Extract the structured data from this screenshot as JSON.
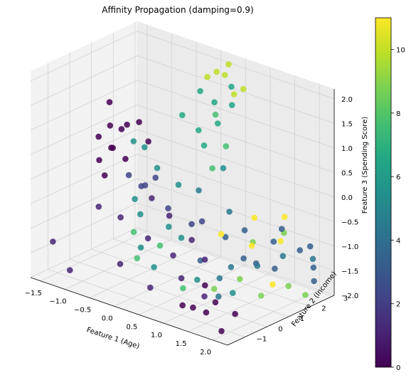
{
  "chart_data": {
    "type": "scatter",
    "projection": "3d",
    "title": "Affinity Propagation (damping=0.9)",
    "xlabel": "Feature 1 (Age)",
    "ylabel": "Feature 2 (Income)",
    "zlabel": "Feature 3 (Spending Score)",
    "xlim": [
      -1.7,
      2.3
    ],
    "ylim": [
      -1.8,
      3.1
    ],
    "zlim": [
      -2.0,
      2.2
    ],
    "xticks": [
      "−1.5",
      "−1.0",
      "−0.5",
      "0.0",
      "0.5",
      "1.0",
      "1.5",
      "2.0"
    ],
    "yticks": [
      "−1",
      "0",
      "1",
      "2",
      "3"
    ],
    "zticks": [
      "−2.0",
      "−1.5",
      "−1.0",
      "−0.5",
      "0.0",
      "0.5",
      "1.0",
      "1.5",
      "2.0"
    ],
    "colorbar": {
      "min": 0,
      "max": 11,
      "ticks": [
        "0",
        "2",
        "4",
        "6",
        "8",
        "10"
      ],
      "colormap": "viridis"
    },
    "grid": true,
    "points": [
      {
        "x": -1.6,
        "y": 1.6,
        "z": 0.9,
        "c": 0
      },
      {
        "x": -1.5,
        "y": 1.4,
        "z": 0.5,
        "c": 0
      },
      {
        "x": -1.6,
        "y": 1.1,
        "z": 0.3,
        "c": 0
      },
      {
        "x": -1.4,
        "y": 1.3,
        "z": 0.1,
        "c": 0
      },
      {
        "x": -1.3,
        "y": 1.0,
        "z": 0.2,
        "c": 0
      },
      {
        "x": -1.5,
        "y": 0.9,
        "z": -0.1,
        "c": 0
      },
      {
        "x": -1.2,
        "y": 1.5,
        "z": 0.6,
        "c": 0
      },
      {
        "x": -1.1,
        "y": 1.2,
        "z": 0.0,
        "c": 0
      },
      {
        "x": -1.4,
        "y": 1.7,
        "z": 0.4,
        "c": 0
      },
      {
        "x": -1.0,
        "y": 1.6,
        "z": 0.7,
        "c": 0
      },
      {
        "x": -0.9,
        "y": 1.8,
        "z": 0.3,
        "c": 0
      },
      {
        "x": -1.3,
        "y": 0.7,
        "z": -0.3,
        "c": 0
      },
      {
        "x": 0.9,
        "y": -0.7,
        "z": -1.9,
        "c": 0
      },
      {
        "x": 1.2,
        "y": -0.9,
        "z": -1.8,
        "c": 0
      },
      {
        "x": 1.6,
        "y": -1.2,
        "z": -1.7,
        "c": 0
      },
      {
        "x": 1.7,
        "y": -1.0,
        "z": -1.5,
        "c": 0
      },
      {
        "x": 2.0,
        "y": -1.4,
        "z": -1.9,
        "c": 0
      },
      {
        "x": 2.1,
        "y": -1.0,
        "z": -1.6,
        "c": 0
      },
      {
        "x": 1.4,
        "y": -0.8,
        "z": -1.3,
        "c": 0
      },
      {
        "x": -1.6,
        "y": -1.0,
        "z": -1.4,
        "c": 1
      },
      {
        "x": -1.3,
        "y": -0.9,
        "z": -1.9,
        "c": 1
      },
      {
        "x": -1.2,
        "y": 0.2,
        "z": -0.8,
        "c": 1
      },
      {
        "x": -0.8,
        "y": 0.3,
        "z": -0.9,
        "c": 1
      },
      {
        "x": -0.5,
        "y": -0.4,
        "z": -1.6,
        "c": 1
      },
      {
        "x": -0.2,
        "y": 0.2,
        "z": -1.1,
        "c": 1
      },
      {
        "x": 0.2,
        "y": -0.6,
        "z": -1.8,
        "c": 1
      },
      {
        "x": 0.4,
        "y": 0.0,
        "z": -1.2,
        "c": 1
      },
      {
        "x": 0.7,
        "y": -0.3,
        "z": -1.5,
        "c": 1
      },
      {
        "x": 1.0,
        "y": 0.1,
        "z": -1.1,
        "c": 1
      },
      {
        "x": 1.3,
        "y": -0.6,
        "z": -1.6,
        "c": 1
      },
      {
        "x": 0.1,
        "y": 0.5,
        "z": -0.6,
        "c": 1
      },
      {
        "x": -0.3,
        "y": 0.6,
        "z": -0.4,
        "c": 1
      },
      {
        "x": 0.6,
        "y": 0.4,
        "z": -0.9,
        "c": 1
      },
      {
        "x": -0.9,
        "y": 0.9,
        "z": -0.2,
        "c": 2
      },
      {
        "x": -0.6,
        "y": 0.8,
        "z": -0.3,
        "c": 2
      },
      {
        "x": -0.4,
        "y": 1.0,
        "z": -0.1,
        "c": 2
      },
      {
        "x": -0.1,
        "y": 0.9,
        "z": -0.6,
        "c": 2
      },
      {
        "x": -0.7,
        "y": 1.2,
        "z": -0.4,
        "c": 2
      },
      {
        "x": 0.2,
        "y": 1.3,
        "z": -0.9,
        "c": 2
      },
      {
        "x": 0.5,
        "y": 1.1,
        "z": -0.7,
        "c": 2
      },
      {
        "x": 0.8,
        "y": 1.5,
        "z": -1.0,
        "c": 3
      },
      {
        "x": 1.1,
        "y": 1.7,
        "z": -0.8,
        "c": 3
      },
      {
        "x": 1.3,
        "y": 1.2,
        "z": -1.2,
        "c": 3
      },
      {
        "x": 1.6,
        "y": 1.9,
        "z": -0.9,
        "c": 3
      },
      {
        "x": 1.8,
        "y": 1.5,
        "z": -1.3,
        "c": 3
      },
      {
        "x": 2.0,
        "y": 2.2,
        "z": -1.0,
        "c": 3
      },
      {
        "x": 2.1,
        "y": 2.6,
        "z": -1.4,
        "c": 3
      },
      {
        "x": 1.9,
        "y": 2.9,
        "z": -1.1,
        "c": 3
      },
      {
        "x": 2.2,
        "y": 2.4,
        "z": -1.6,
        "c": 3
      },
      {
        "x": 1.5,
        "y": 2.5,
        "z": -0.8,
        "c": 3
      },
      {
        "x": 0.6,
        "y": 0.8,
        "z": -1.4,
        "c": 3
      },
      {
        "x": 1.2,
        "y": 2.0,
        "z": -1.5,
        "c": 3
      },
      {
        "x": 0.9,
        "y": 1.0,
        "z": -1.7,
        "c": 4
      },
      {
        "x": 1.0,
        "y": 1.3,
        "z": -1.5,
        "c": 4
      },
      {
        "x": 1.4,
        "y": 1.6,
        "z": -1.4,
        "c": 4
      },
      {
        "x": 1.7,
        "y": 2.1,
        "z": -1.2,
        "c": 4
      },
      {
        "x": 2.0,
        "y": 2.8,
        "z": -1.3,
        "c": 4
      },
      {
        "x": 0.7,
        "y": 1.9,
        "z": -0.6,
        "c": 4
      },
      {
        "x": 0.3,
        "y": 1.4,
        "z": -0.2,
        "c": 4
      },
      {
        "x": 1.1,
        "y": 0.5,
        "z": -1.9,
        "c": 4
      },
      {
        "x": -1.2,
        "y": 1.8,
        "z": 0.2,
        "c": 5
      },
      {
        "x": -0.5,
        "y": 1.3,
        "z": 0.0,
        "c": 5
      },
      {
        "x": -0.2,
        "y": 1.6,
        "z": -0.3,
        "c": 5
      },
      {
        "x": 0.0,
        "y": 0.7,
        "z": -0.9,
        "c": 5
      },
      {
        "x": -0.4,
        "y": 0.3,
        "z": -0.7,
        "c": 5
      },
      {
        "x": 0.4,
        "y": 2.3,
        "z": 0.1,
        "c": 5
      },
      {
        "x": -0.8,
        "y": 1.4,
        "z": 0.3,
        "c": 6
      },
      {
        "x": -0.6,
        "y": 0.5,
        "z": -0.5,
        "c": 6
      },
      {
        "x": -0.3,
        "y": 0.1,
        "z": -1.3,
        "c": 6
      },
      {
        "x": 0.1,
        "y": -0.2,
        "z": -1.5,
        "c": 6
      },
      {
        "x": 0.3,
        "y": 0.6,
        "z": -1.0,
        "c": 6
      },
      {
        "x": 0.8,
        "y": 0.2,
        "z": -1.6,
        "c": 6
      },
      {
        "x": 1.3,
        "y": 0.7,
        "z": -1.8,
        "c": 6
      },
      {
        "x": -0.2,
        "y": 2.6,
        "z": 1.4,
        "c": 7
      },
      {
        "x": 0.0,
        "y": 2.8,
        "z": 1.2,
        "c": 7
      },
      {
        "x": 0.2,
        "y": 2.5,
        "z": 0.9,
        "c": 7
      },
      {
        "x": -0.1,
        "y": 2.3,
        "z": 0.7,
        "c": 7
      },
      {
        "x": 0.3,
        "y": 2.9,
        "z": 1.6,
        "c": 7
      },
      {
        "x": 0.1,
        "y": 2.1,
        "z": 0.5,
        "c": 7
      },
      {
        "x": -0.3,
        "y": 2.0,
        "z": 1.0,
        "c": 7
      },
      {
        "x": 0.4,
        "y": 2.7,
        "z": 1.3,
        "c": 7
      },
      {
        "x": -0.4,
        "y": 0.0,
        "z": -1.0,
        "c": 8
      },
      {
        "x": -0.2,
        "y": -0.3,
        "z": -1.4,
        "c": 8
      },
      {
        "x": 0.0,
        "y": 0.3,
        "z": -1.2,
        "c": 8
      },
      {
        "x": 0.2,
        "y": 2.4,
        "z": 1.1,
        "c": 8
      },
      {
        "x": 0.5,
        "y": 2.2,
        "z": 0.6,
        "c": 8
      },
      {
        "x": 0.4,
        "y": 1.8,
        "z": 0.2,
        "c": 8
      },
      {
        "x": 0.6,
        "y": 0.0,
        "z": -1.8,
        "c": 8
      },
      {
        "x": 1.1,
        "y": 0.3,
        "z": -1.7,
        "c": 9
      },
      {
        "x": 1.4,
        "y": 0.8,
        "z": -1.5,
        "c": 9
      },
      {
        "x": 1.7,
        "y": 1.1,
        "z": -1.8,
        "c": 9
      },
      {
        "x": 1.9,
        "y": 1.9,
        "z": -1.7,
        "c": 9
      },
      {
        "x": 2.2,
        "y": 2.0,
        "z": -1.8,
        "c": 9
      },
      {
        "x": 1.5,
        "y": 2.6,
        "z": -0.9,
        "c": 9
      },
      {
        "x": 1.0,
        "y": 2.3,
        "z": -1.2,
        "c": 9
      },
      {
        "x": 0.0,
        "y": 2.9,
        "z": 1.8,
        "c": 10
      },
      {
        "x": 0.2,
        "y": 3.0,
        "z": 2.0,
        "c": 10
      },
      {
        "x": 0.4,
        "y": 2.8,
        "z": 1.5,
        "c": 10
      },
      {
        "x": -0.1,
        "y": 2.7,
        "z": 1.7,
        "c": 10
      },
      {
        "x": 0.3,
        "y": 2.6,
        "z": 1.9,
        "c": 10
      },
      {
        "x": 0.5,
        "y": 3.0,
        "z": 1.6,
        "c": 10
      },
      {
        "x": 0.8,
        "y": 1.3,
        "z": -0.9,
        "c": 11
      },
      {
        "x": 1.2,
        "y": 1.8,
        "z": -1.1,
        "c": 11
      },
      {
        "x": 1.6,
        "y": 2.4,
        "z": -0.5,
        "c": 11
      },
      {
        "x": 1.8,
        "y": 1.4,
        "z": -1.6,
        "c": 11
      },
      {
        "x": 0.9,
        "y": 2.6,
        "z": -0.8,
        "c": 11
      },
      {
        "x": 1.3,
        "y": 2.9,
        "z": -1.2,
        "c": 11
      }
    ]
  }
}
